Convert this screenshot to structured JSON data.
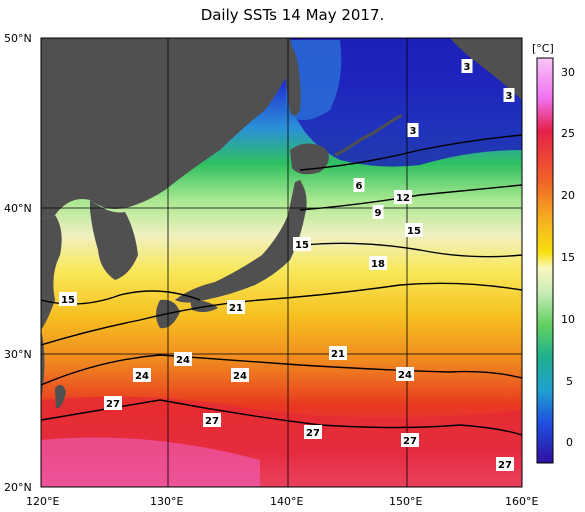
{
  "title": "Daily SSTs 14 May 2017.",
  "colorbar": {
    "unit": "[°C]",
    "ticks": [
      "30",
      "25",
      "20",
      "15",
      "10",
      "5",
      "0"
    ],
    "colors": [
      "#f8c6f8",
      "#f070f0",
      "#e6214a",
      "#f05028",
      "#f6a020",
      "#f7d810",
      "#f9f8b0",
      "#d8f0c8",
      "#90e070",
      "#40c840",
      "#20b080",
      "#20a0c0",
      "#2060e0",
      "#2020c0",
      "#3010a0"
    ]
  },
  "axes": {
    "lat_labels": [
      "50°N",
      "40°N",
      "30°N",
      "20°N"
    ],
    "lon_labels": [
      "120°E",
      "130°E",
      "140°E",
      "150°E",
      "160°E"
    ]
  },
  "contour_labels": [
    "3",
    "3",
    "3",
    "6",
    "12",
    "9",
    "15",
    "15",
    "18",
    "15",
    "21",
    "21",
    "24",
    "24",
    "24",
    "24",
    "27",
    "27",
    "27",
    "27",
    "27"
  ],
  "colors": {
    "land": "#505050",
    "ocean_cold": "#2020c0",
    "ocean_warm": "#e6214a"
  }
}
